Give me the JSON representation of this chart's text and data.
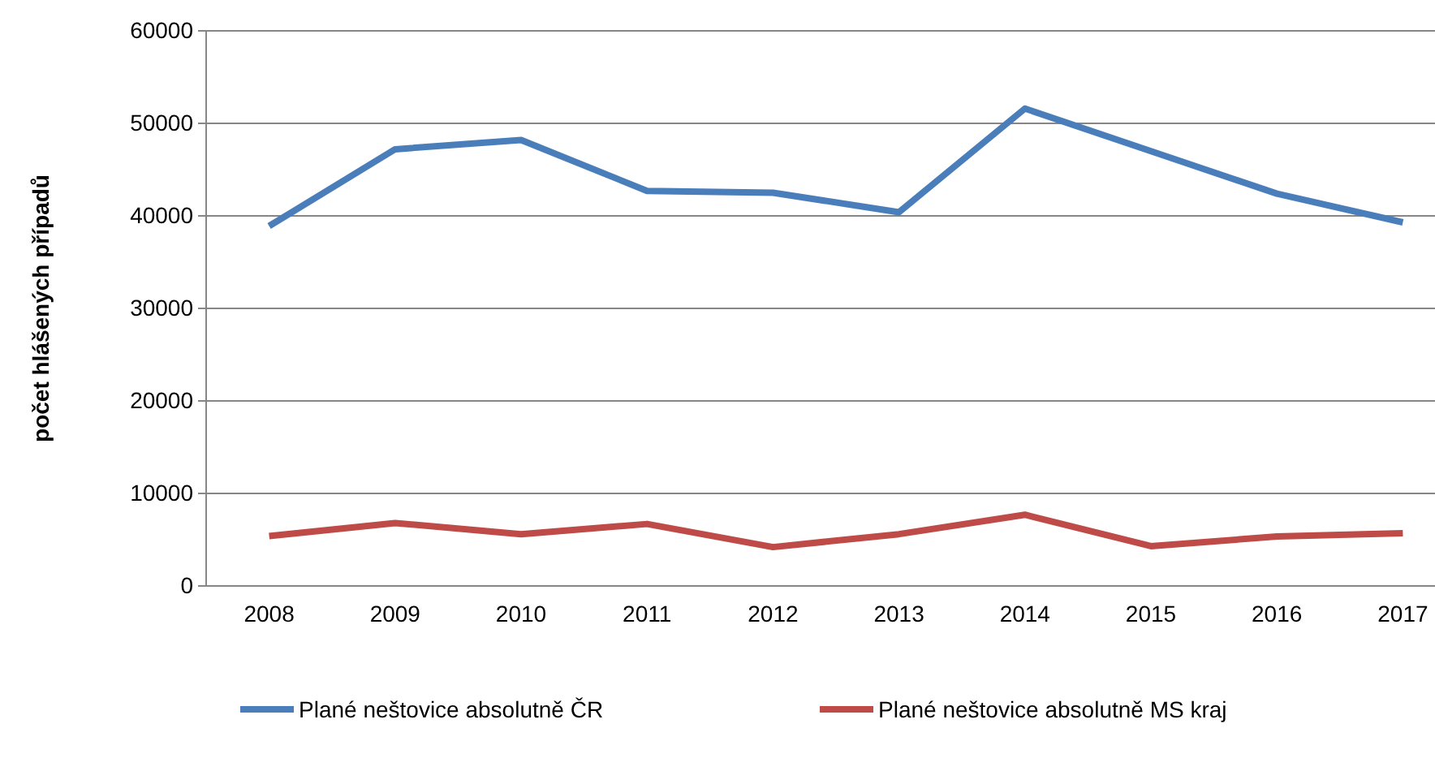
{
  "chart_data": {
    "type": "line",
    "ylabel": "počet hlášených případů",
    "categories": [
      "2008",
      "2009",
      "2010",
      "2011",
      "2012",
      "2013",
      "2014",
      "2015",
      "2016",
      "2017"
    ],
    "series": [
      {
        "name": "Plané neštovice absolutně ČR",
        "color": "#4a7ebb",
        "values": [
          38900,
          47200,
          48200,
          42700,
          42500,
          40400,
          51600,
          47000,
          42400,
          39300
        ]
      },
      {
        "name": "Plané neštovice absolutně MS kraj",
        "color": "#be4b48",
        "values": [
          5400,
          6800,
          5600,
          6700,
          4200,
          5600,
          7700,
          4300,
          5350,
          5700
        ]
      }
    ],
    "ylim": [
      0,
      60000
    ],
    "yticks": [
      0,
      10000,
      20000,
      30000,
      40000,
      50000,
      60000
    ],
    "grid": "y",
    "legend": "bottom",
    "marker": "none",
    "line_style": "solid"
  }
}
